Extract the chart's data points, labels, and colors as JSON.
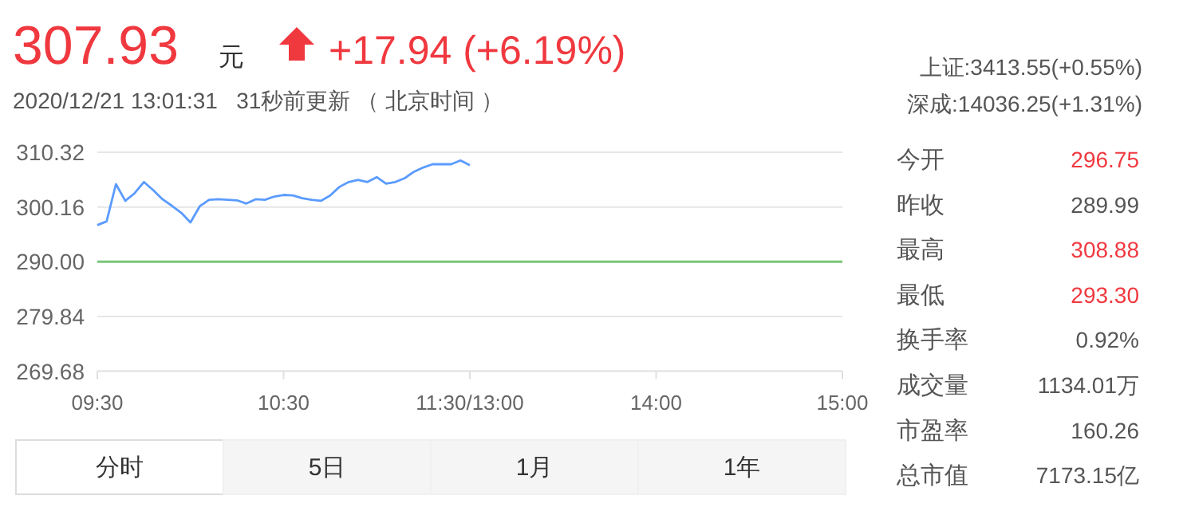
{
  "chart_data": {
    "type": "line",
    "title": "307.93",
    "subtitle": "2020/12/21 13:01:31   31秒前更新 （ 北京时间 ）",
    "annotations": [
      "元",
      "+17.94 (+6.19%)",
      "上证:3413.55(+0.55%)",
      "深成:14036.25(+1.31%)",
      "今开",
      "296.75",
      "昨收",
      "289.99",
      "最高",
      "308.88",
      "最低",
      "293.30",
      "换手率",
      "0.92%",
      "成交量",
      "1134.01万",
      "市盈率",
      "160.26",
      "总市值",
      "7173.15亿",
      "分时",
      "5日",
      "1月",
      "1年"
    ],
    "categories": [
      "09:30",
      null,
      null,
      null,
      null,
      null,
      null,
      null,
      null,
      null,
      null,
      null,
      null,
      null,
      null,
      null,
      null,
      null,
      null,
      null,
      "10:30",
      null,
      null,
      null,
      null,
      null,
      null,
      null,
      null,
      null,
      null,
      null,
      null,
      null,
      null,
      null,
      null,
      null,
      null,
      null,
      "11:30/13:00",
      null,
      null,
      null,
      null,
      null,
      null,
      null,
      null,
      null,
      null,
      null,
      null,
      null,
      null,
      null,
      null,
      null,
      null,
      null,
      "14:00",
      null,
      null,
      null,
      null,
      null,
      null,
      null,
      null,
      null,
      null,
      null,
      null,
      null,
      null,
      null,
      null,
      null,
      null,
      null,
      "15:00"
    ],
    "series": [
      {
        "color": "#5b9bff",
        "values": [
          296.8,
          297.5,
          304.4,
          301.3,
          302.7,
          304.8,
          303.3,
          301.6,
          300.4,
          299.1,
          297.3,
          300.3,
          301.5,
          301.6,
          301.5,
          301.4,
          300.8,
          301.6,
          301.5,
          302.1,
          302.4,
          302.3,
          301.8,
          301.5,
          301.3,
          302.3,
          303.9,
          304.8,
          305.2,
          304.8,
          305.7,
          304.5,
          304.8,
          305.5,
          306.7,
          307.5,
          308.1,
          308.1,
          308.1,
          308.8,
          307.9,
          null,
          null,
          null,
          null,
          null,
          null,
          null,
          null,
          null,
          null,
          null,
          null,
          null,
          null,
          null,
          null,
          null,
          null,
          null,
          null,
          null,
          null,
          null,
          null,
          null,
          null,
          null,
          null,
          null,
          null,
          null,
          null,
          null,
          null,
          null,
          null,
          null,
          null,
          null,
          null
        ]
      }
    ],
    "ylim": [
      269.68,
      310.32
    ],
    "yticks": [
      {
        "value": 269.68,
        "label": "269.68"
      },
      {
        "value": 279.84,
        "label": "279.84"
      },
      {
        "value": 290,
        "label": "290.00"
      },
      {
        "value": 300.16,
        "label": "300.16"
      },
      {
        "value": 310.32,
        "label": "310.32"
      }
    ],
    "ref_lines": [
      {
        "axis": "y",
        "value": 290,
        "color": "#79c679"
      }
    ],
    "grid": "y"
  }
}
